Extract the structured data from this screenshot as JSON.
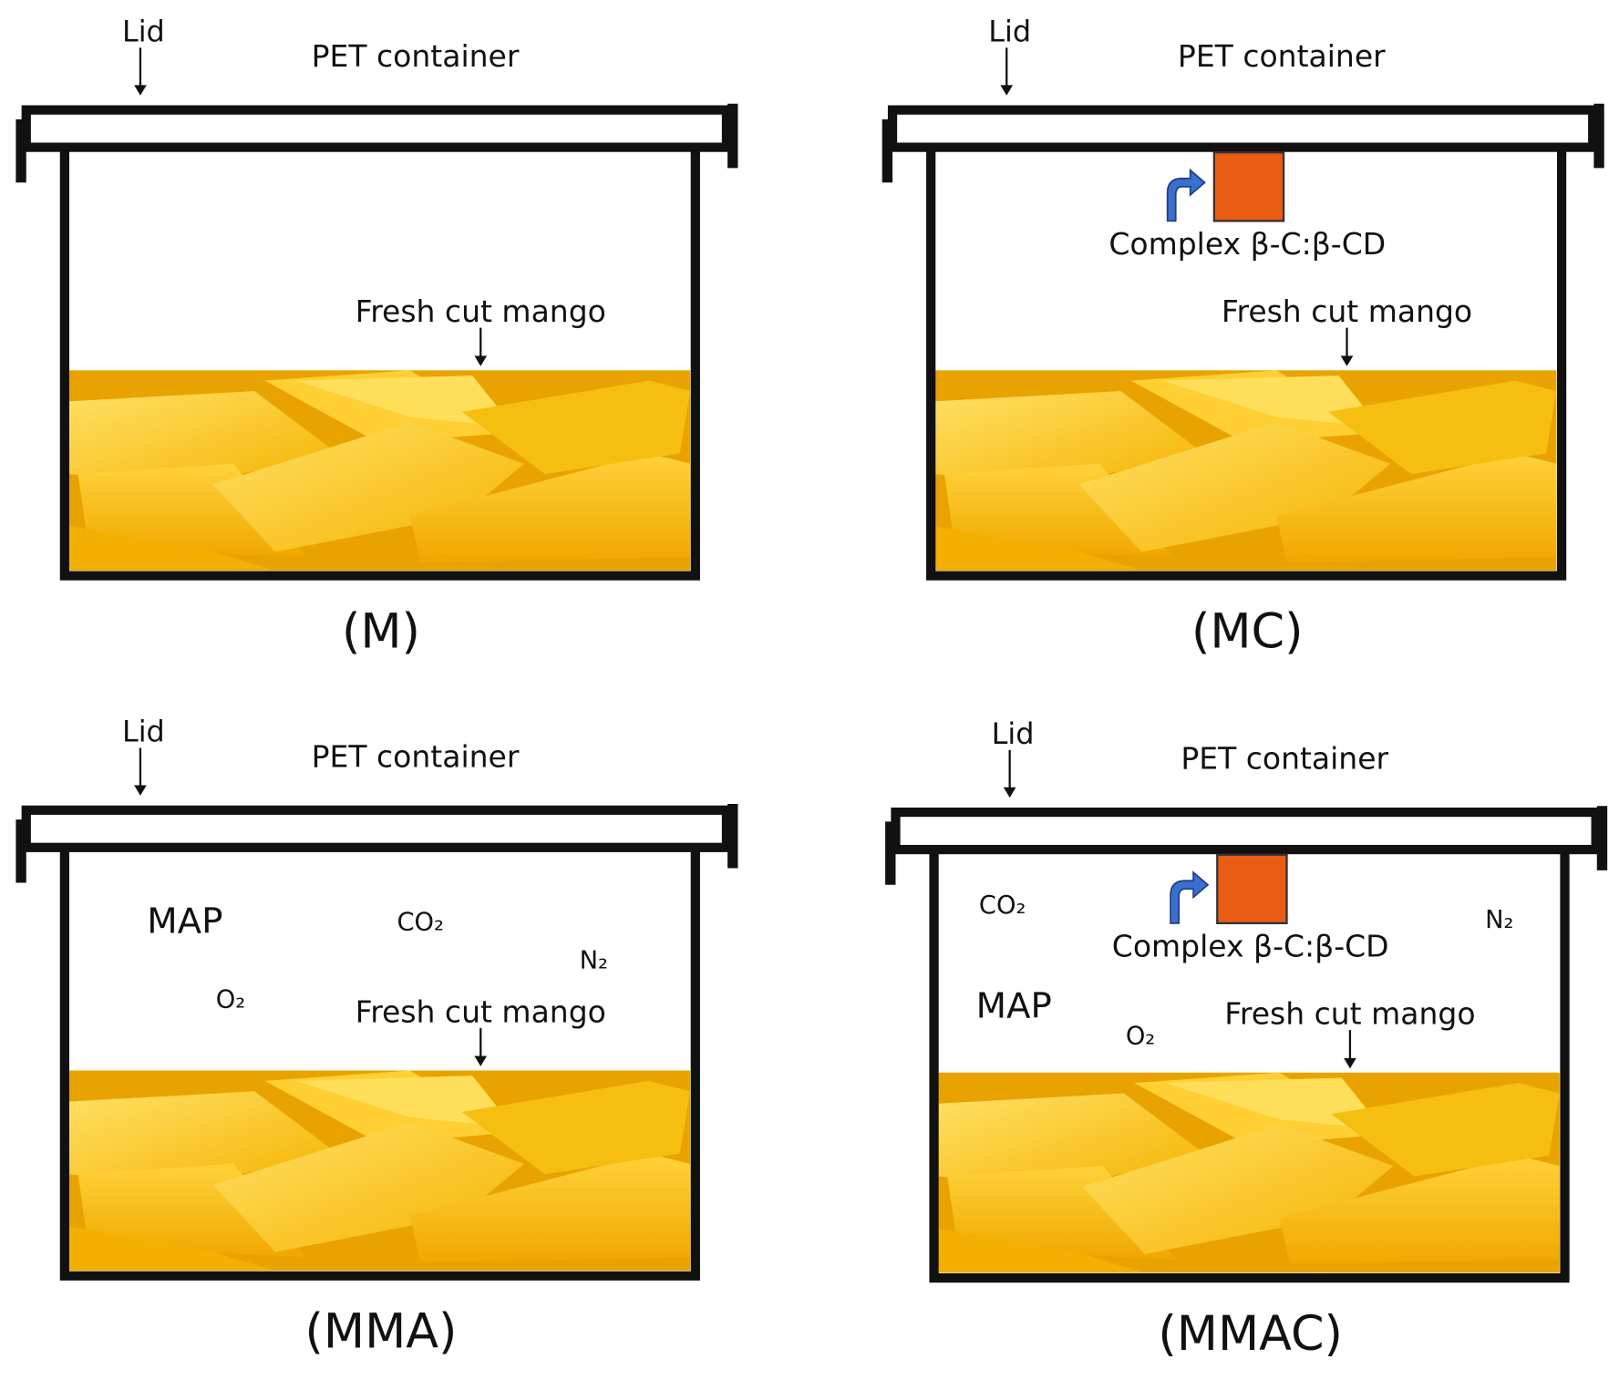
{
  "panels": [
    {
      "lid": "Lid",
      "container": "PET container",
      "mango": "Fresh cut mango",
      "caption": "(M)"
    },
    {
      "lid": "Lid",
      "container": "PET container",
      "mango": "Fresh cut mango",
      "caption": "(MC)",
      "complex": "Complex β-C:β-CD"
    },
    {
      "lid": "Lid",
      "container": "PET container",
      "mango": "Fresh cut mango",
      "caption": "(MMA)",
      "map": "MAP",
      "gases": [
        "CO₂",
        "N₂",
        "O₂"
      ]
    },
    {
      "lid": "Lid",
      "container": "PET container",
      "mango": "Fresh cut mango",
      "caption": "(MMAC)",
      "complex": "Complex β-C:β-CD",
      "map": "MAP",
      "gases": [
        "CO₂",
        "N₂",
        "O₂"
      ]
    }
  ]
}
